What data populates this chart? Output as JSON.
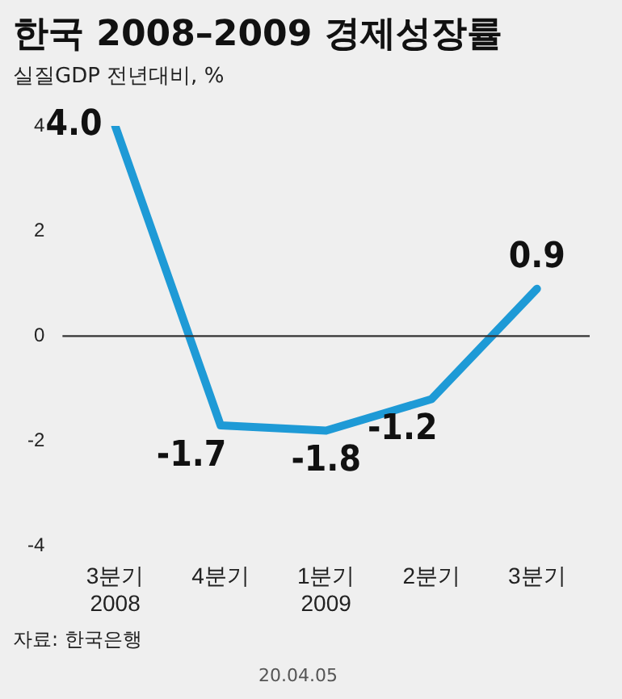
{
  "chart_data": {
    "type": "line",
    "title": "한국 2008–2009 경제성장률",
    "subtitle": "실질GDP 전년대비, %",
    "categories": [
      "3분기\n2008",
      "4분기",
      "1분기\n2009",
      "2분기",
      "3분기"
    ],
    "series": [
      {
        "color": "#1e9ad6",
        "values": [
          4.0,
          -1.7,
          -1.8,
          -1.2,
          0.9
        ],
        "value_labels": [
          "4.0",
          "-1.7",
          "-1.8",
          "-1.2",
          "0.9"
        ]
      }
    ],
    "ylim": [
      -4,
      4
    ],
    "yticks": [
      -4,
      -2,
      0,
      2,
      4
    ],
    "grid": false,
    "legend": false,
    "marker": "none",
    "line_style": "solid",
    "ref_lines": [
      {
        "axis": "y",
        "value": 0,
        "color": "#333333"
      }
    ],
    "annotations": [
      "자료: 한국은행",
      "20.04.05"
    ]
  }
}
